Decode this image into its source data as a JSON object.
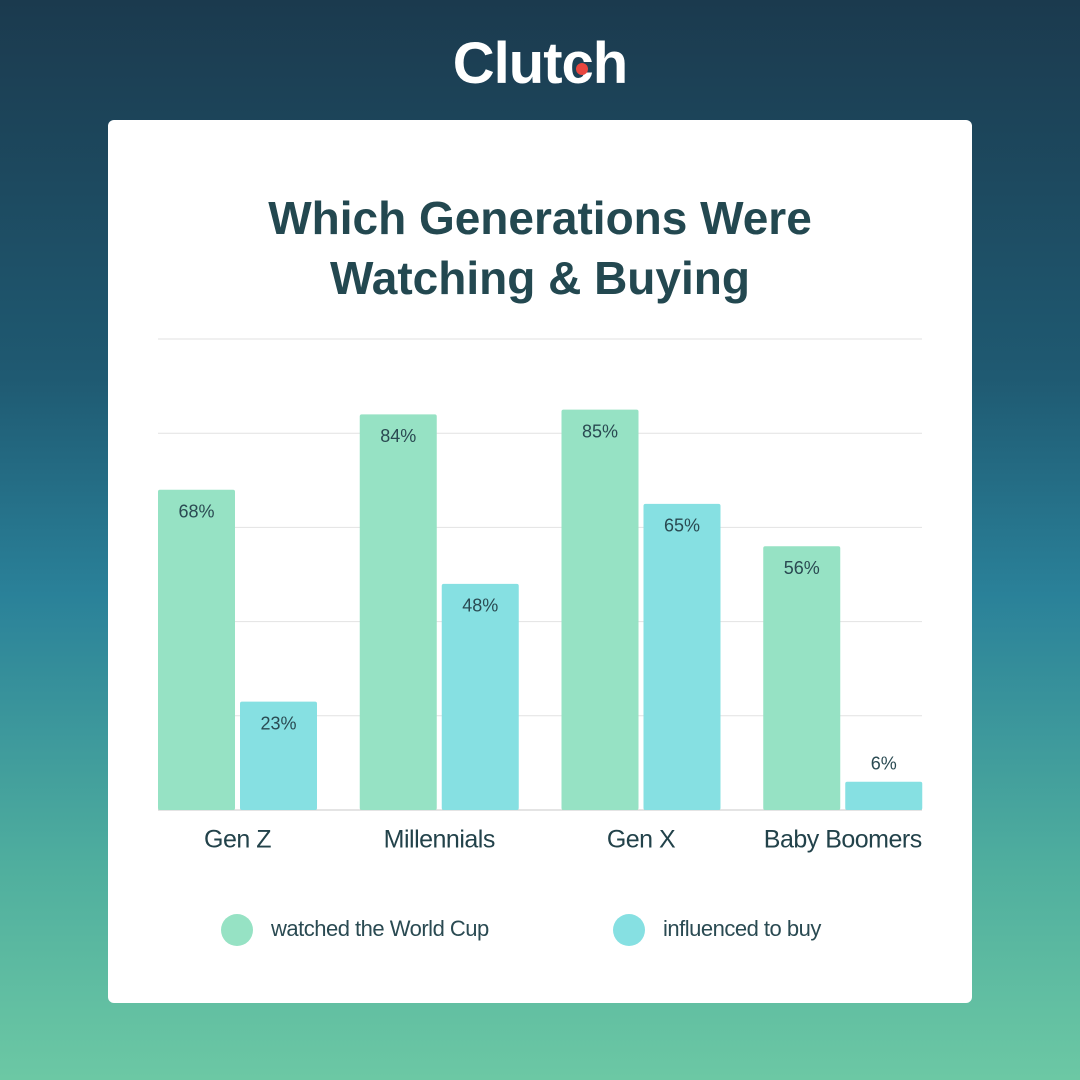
{
  "brand": "Clutch",
  "chart_data": {
    "type": "bar",
    "title": "Which Generations Were Watching & Buying",
    "categories": [
      "Gen Z",
      "Millennials",
      "Gen X",
      "Baby Boomers"
    ],
    "series": [
      {
        "name": "watched the World Cup",
        "color": "#96e2c4",
        "values": [
          68,
          84,
          85,
          56
        ],
        "value_labels": [
          "68%",
          "84%",
          "85%",
          "56%"
        ]
      },
      {
        "name": "influenced to buy",
        "color": "#86e0e2",
        "values": [
          23,
          48,
          65,
          6
        ],
        "value_labels": [
          "23%",
          "48%",
          "65%",
          "6%"
        ]
      }
    ],
    "ylim": [
      0,
      100
    ],
    "yticks": [
      0,
      20,
      40,
      60,
      80,
      100
    ],
    "grid": true
  }
}
